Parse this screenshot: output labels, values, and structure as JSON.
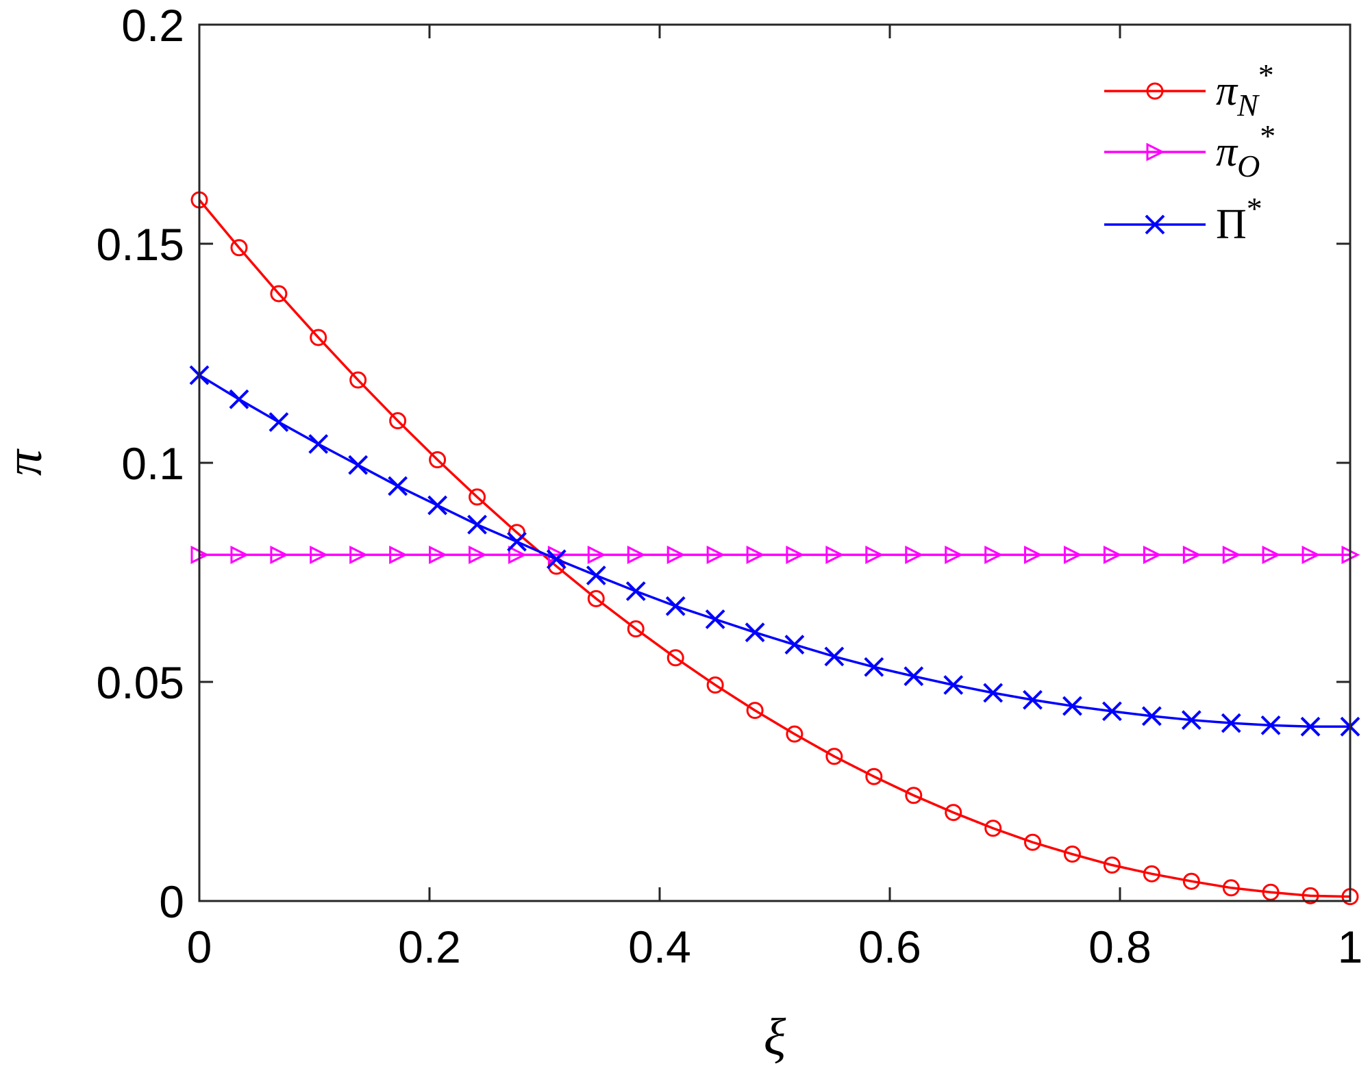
{
  "chart_data": {
    "type": "line",
    "xlabel": "ξ",
    "ylabel": "π",
    "xlim": [
      0,
      1
    ],
    "ylim": [
      0,
      0.2
    ],
    "xticks": [
      0,
      0.2,
      0.4,
      0.6,
      0.8,
      1
    ],
    "xtick_labels": [
      "0",
      "0.2",
      "0.4",
      "0.6",
      "0.8",
      "1"
    ],
    "yticks": [
      0,
      0.05,
      0.1,
      0.15,
      0.2
    ],
    "ytick_labels": [
      "0",
      "0.05",
      "0.1",
      "0.15",
      "0.2"
    ],
    "grid": false,
    "legend_position": "top-right",
    "x": [
      0,
      0.0345,
      0.069,
      0.1034,
      0.1379,
      0.1724,
      0.2069,
      0.2414,
      0.2759,
      0.3103,
      0.3448,
      0.3793,
      0.4138,
      0.4483,
      0.4828,
      0.5172,
      0.5517,
      0.5862,
      0.6207,
      0.6552,
      0.6897,
      0.7241,
      0.7586,
      0.7931,
      0.8276,
      0.8621,
      0.8966,
      0.931,
      0.9655,
      1
    ],
    "series": [
      {
        "name": "πN*",
        "legend_main": "π",
        "legend_sub": "N",
        "legend_sup": "*",
        "color": "#ff0000",
        "marker": "circle",
        "values": [
          0.16,
          0.1491,
          0.1386,
          0.1286,
          0.1189,
          0.1096,
          0.1007,
          0.0922,
          0.0841,
          0.0764,
          0.069,
          0.0621,
          0.0555,
          0.0493,
          0.0435,
          0.0381,
          0.033,
          0.0284,
          0.0241,
          0.0202,
          0.0166,
          0.0134,
          0.0107,
          0.0082,
          0.0062,
          0.0045,
          0.003,
          0.002,
          0.0012,
          0.001
        ]
      },
      {
        "name": "πO*",
        "legend_main": "π",
        "legend_sub": "O",
        "legend_sup": "*",
        "color": "#ff00ff",
        "marker": "triangle-right",
        "values": [
          0.079,
          0.079,
          0.079,
          0.079,
          0.079,
          0.079,
          0.079,
          0.079,
          0.079,
          0.079,
          0.079,
          0.079,
          0.079,
          0.079,
          0.079,
          0.079,
          0.079,
          0.079,
          0.079,
          0.079,
          0.079,
          0.079,
          0.079,
          0.079,
          0.079,
          0.079,
          0.079,
          0.079,
          0.079,
          0.079
        ]
      },
      {
        "name": "Π*",
        "legend_main": "Π",
        "legend_sub": "",
        "legend_sup": "*",
        "color": "#0000ff",
        "marker": "x",
        "values": [
          0.12,
          0.1145,
          0.1093,
          0.1043,
          0.0995,
          0.0947,
          0.0903,
          0.0859,
          0.082,
          0.078,
          0.0743,
          0.0707,
          0.0673,
          0.0643,
          0.0613,
          0.0585,
          0.0558,
          0.0534,
          0.0513,
          0.0493,
          0.0475,
          0.0459,
          0.0445,
          0.0433,
          0.0422,
          0.0413,
          0.0406,
          0.0401,
          0.0398,
          0.0398
        ]
      }
    ]
  }
}
